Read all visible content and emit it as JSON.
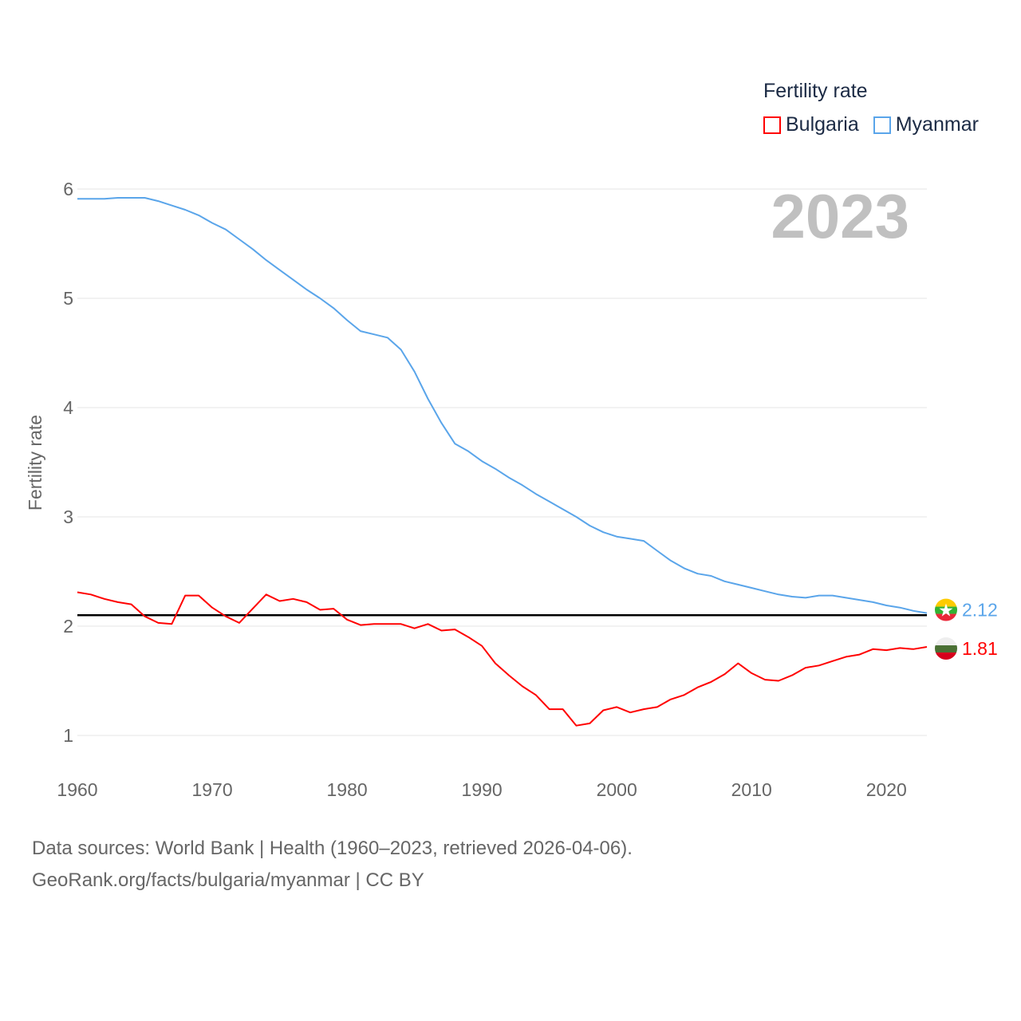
{
  "chart_data": {
    "type": "line",
    "title": "",
    "legend_title": "Fertility rate",
    "legend_position": "top-right",
    "ylabel": "Fertility rate",
    "xlabel": "",
    "xlim": [
      1960,
      2023
    ],
    "ylim": [
      0.5,
      6.0
    ],
    "yticks": [
      1,
      2,
      3,
      4,
      5,
      6
    ],
    "xticks": [
      1960,
      1970,
      1980,
      1990,
      2000,
      2010,
      2020
    ],
    "grid": true,
    "reference_line": 2.1,
    "current_year_label": "2023",
    "x": [
      1960,
      1961,
      1962,
      1963,
      1964,
      1965,
      1966,
      1967,
      1968,
      1969,
      1970,
      1971,
      1972,
      1973,
      1974,
      1975,
      1976,
      1977,
      1978,
      1979,
      1980,
      1981,
      1982,
      1983,
      1984,
      1985,
      1986,
      1987,
      1988,
      1989,
      1990,
      1991,
      1992,
      1993,
      1994,
      1995,
      1996,
      1997,
      1998,
      1999,
      2000,
      2001,
      2002,
      2003,
      2004,
      2005,
      2006,
      2007,
      2008,
      2009,
      2010,
      2011,
      2012,
      2013,
      2014,
      2015,
      2016,
      2017,
      2018,
      2019,
      2020,
      2021,
      2022,
      2023
    ],
    "series": [
      {
        "name": "Bulgaria",
        "color": "#ff0000",
        "end_label": "1.81",
        "values": [
          2.31,
          2.29,
          2.25,
          2.22,
          2.2,
          2.09,
          2.03,
          2.02,
          2.28,
          2.28,
          2.17,
          2.09,
          2.03,
          2.16,
          2.29,
          2.23,
          2.25,
          2.22,
          2.15,
          2.16,
          2.06,
          2.01,
          2.02,
          2.02,
          2.02,
          1.98,
          2.02,
          1.96,
          1.97,
          1.9,
          1.82,
          1.66,
          1.55,
          1.45,
          1.37,
          1.24,
          1.24,
          1.09,
          1.11,
          1.23,
          1.26,
          1.21,
          1.24,
          1.26,
          1.33,
          1.37,
          1.44,
          1.49,
          1.56,
          1.66,
          1.57,
          1.51,
          1.5,
          1.55,
          1.62,
          1.64,
          1.68,
          1.72,
          1.74,
          1.79,
          1.78,
          1.8,
          1.79,
          1.81
        ]
      },
      {
        "name": "Myanmar",
        "color": "#5aa5ea",
        "end_label": "2.12",
        "values": [
          5.91,
          5.91,
          5.91,
          5.92,
          5.92,
          5.92,
          5.89,
          5.85,
          5.81,
          5.76,
          5.69,
          5.63,
          5.54,
          5.45,
          5.35,
          5.26,
          5.17,
          5.08,
          5.0,
          4.91,
          4.8,
          4.7,
          4.67,
          4.64,
          4.53,
          4.33,
          4.08,
          3.86,
          3.67,
          3.6,
          3.51,
          3.44,
          3.36,
          3.29,
          3.21,
          3.14,
          3.07,
          3.0,
          2.92,
          2.86,
          2.82,
          2.8,
          2.78,
          2.69,
          2.6,
          2.53,
          2.48,
          2.46,
          2.41,
          2.38,
          2.35,
          2.32,
          2.29,
          2.27,
          2.26,
          2.28,
          2.28,
          2.26,
          2.24,
          2.22,
          2.19,
          2.17,
          2.14,
          2.12
        ]
      }
    ]
  },
  "footer": {
    "line1": "Data sources: World Bank | Health (1960–2023, retrieved 2026-04-06).",
    "line2": "GeoRank.org/facts/bulgaria/myanmar | CC BY"
  }
}
